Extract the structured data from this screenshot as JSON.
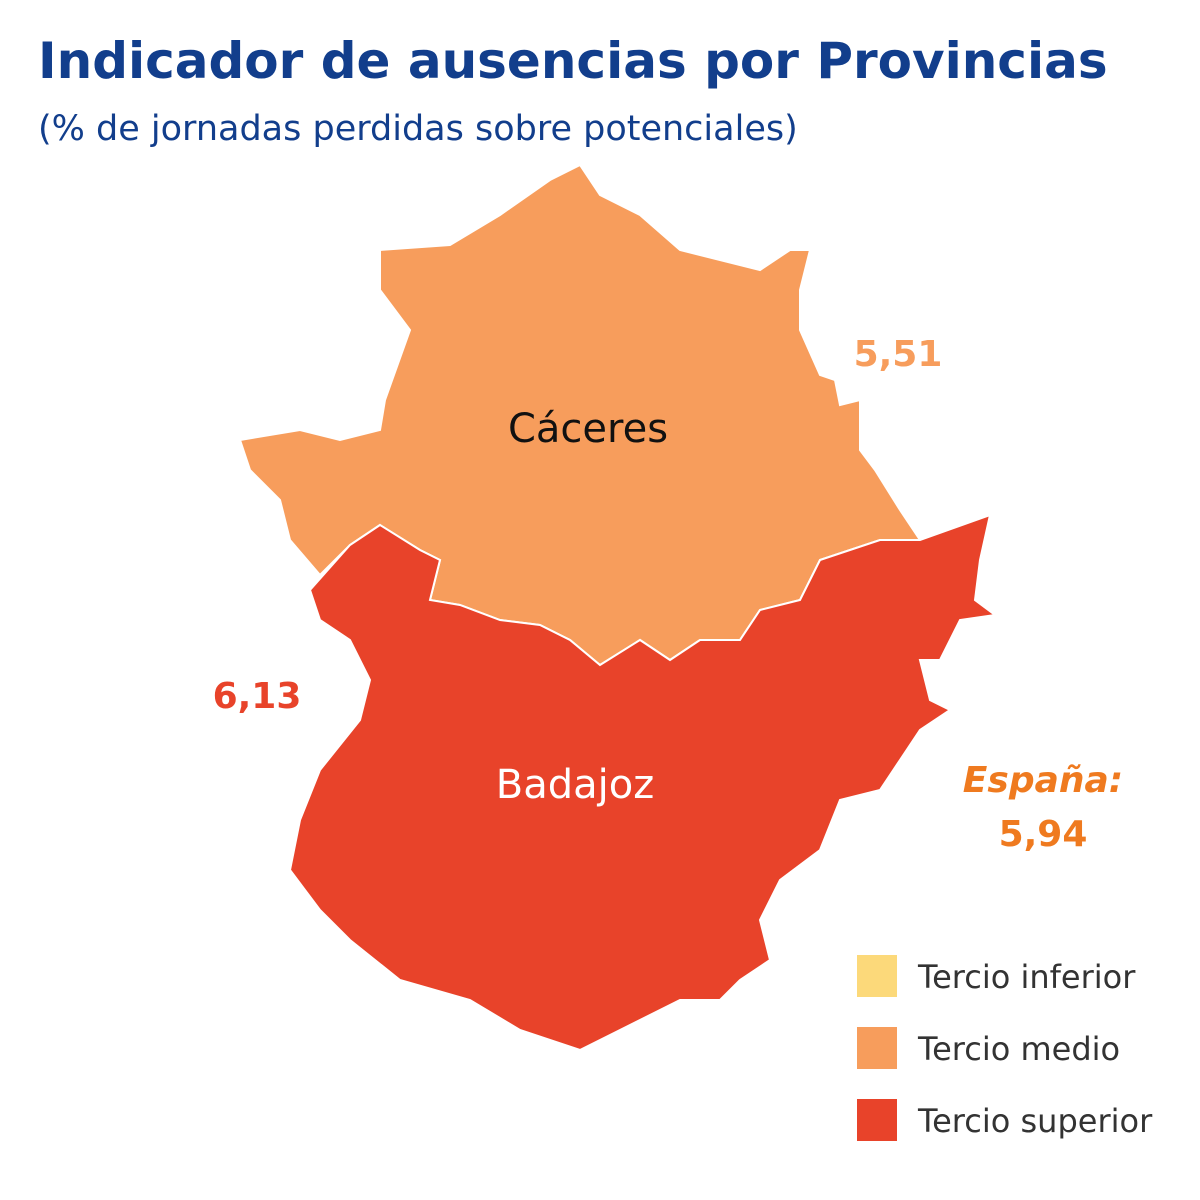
{
  "header": {
    "title": "Indicador de ausencias por Provincias",
    "subtitle": "(% de jornadas perdidas sobre potenciales)"
  },
  "regions": [
    {
      "name": "Cáceres",
      "value": "5,51",
      "color": "#f79d5c"
    },
    {
      "name": "Badajoz",
      "value": "6,13",
      "color": "#e8432a"
    }
  ],
  "national": {
    "label": "España:",
    "value": "5,94",
    "color": "#ef7a1f"
  },
  "legend": [
    {
      "label": "Tercio inferior",
      "color": "#fcd97a"
    },
    {
      "label": "Tercio medio",
      "color": "#f79d5c"
    },
    {
      "label": "Tercio superior",
      "color": "#e8432a"
    }
  ]
}
